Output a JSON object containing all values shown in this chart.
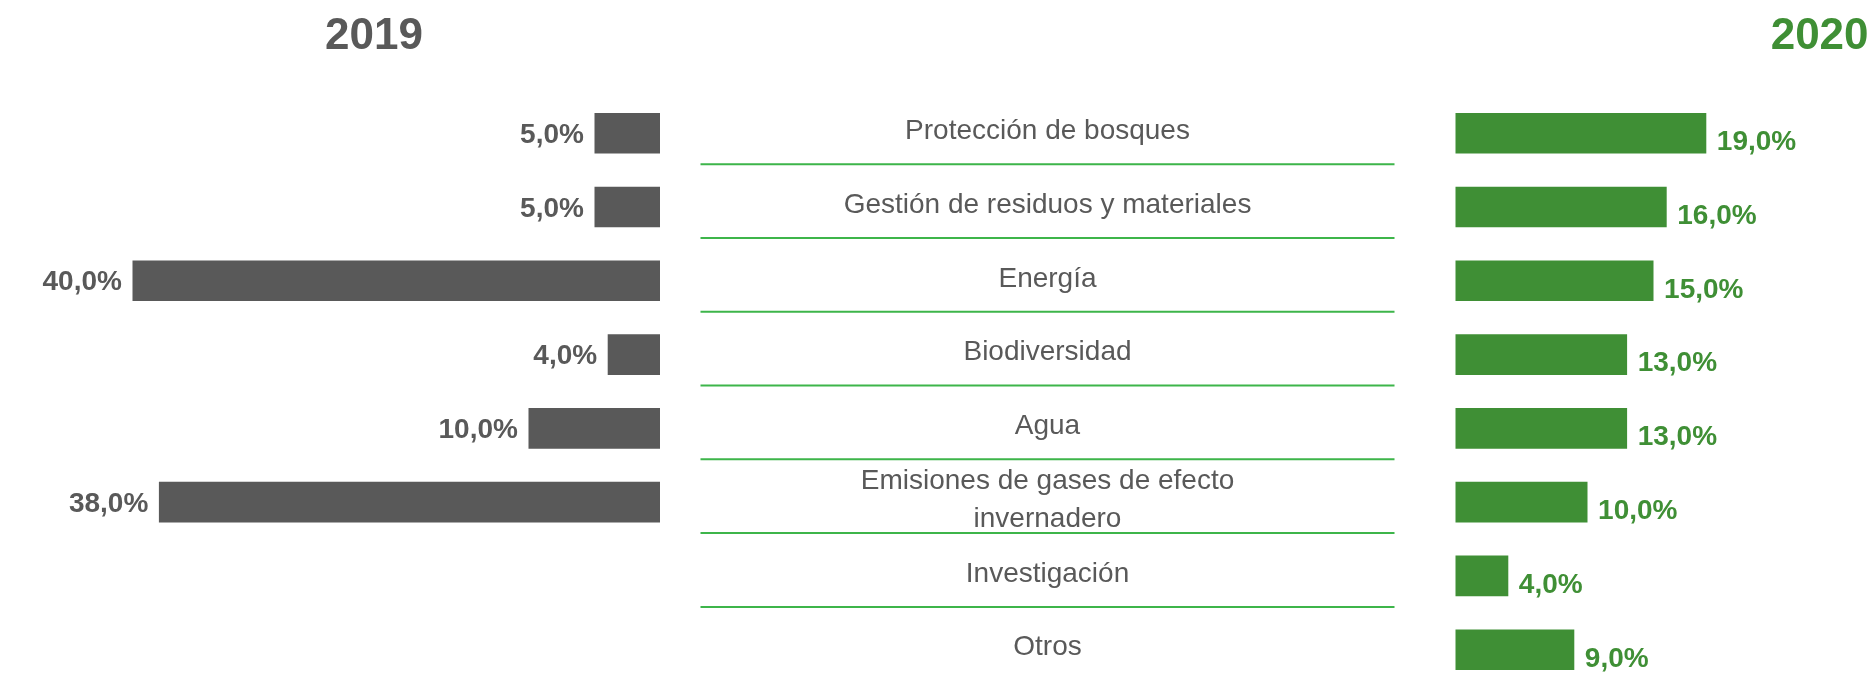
{
  "chart_data": [
    {
      "type": "bar",
      "orientation": "horizontal",
      "tick_labels": false,
      "categories": [
        "Protección de bosques",
        "Gestión de residuos y materiales",
        "Energía",
        "Biodiversidad",
        "Agua",
        "Emisiones de gases de efecto invernadero",
        "Investigación",
        "Otros"
      ],
      "series": [
        {
          "name": "2019",
          "color": "#595959",
          "values": [
            5,
            5,
            40,
            4,
            10,
            38,
            null,
            null
          ],
          "value_labels": [
            "5,0%",
            "5,0%",
            "40,0%",
            "4,0%",
            "10,0%",
            "38,0%",
            null,
            null
          ]
        }
      ]
    },
    {
      "type": "bar",
      "orientation": "horizontal",
      "categories": [
        "Protección de bosques",
        "Gestión de residuos y materiales",
        "Energía",
        "Biodiversidad",
        "Agua",
        "Emisiones de gases de efecto invernadero",
        "Investigación",
        "Otros"
      ],
      "series": [
        {
          "name": "2020",
          "color": "#3f8f35",
          "values": [
            19,
            16,
            15,
            13,
            13,
            10,
            4,
            9
          ],
          "value_labels": [
            "19,0%",
            "16,0%",
            "15,0%",
            "13,0%",
            "13,0%",
            "10,0%",
            "4,0%",
            "9,0%"
          ]
        }
      ]
    }
  ]
}
